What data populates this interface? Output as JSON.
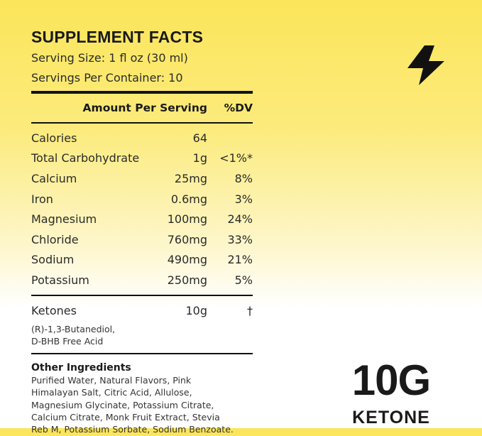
{
  "facts": {
    "title": "SUPPLEMENT FACTS",
    "serving_size": "Serving Size: 1 fl oz (30 ml)",
    "servings_per_container": "Servings Per Container: 10",
    "header_amount": "Amount Per Serving",
    "header_dv": "%DV",
    "rows": [
      {
        "name": "Calories",
        "amount": "64",
        "dv": ""
      },
      {
        "name": "Total Carbohydrate",
        "amount": "1g",
        "dv": "<1%*"
      },
      {
        "name": "Calcium",
        "amount": "25mg",
        "dv": "8%"
      },
      {
        "name": "Iron",
        "amount": "0.6mg",
        "dv": "3%"
      },
      {
        "name": "Magnesium",
        "amount": "100mg",
        "dv": "24%"
      },
      {
        "name": "Chloride",
        "amount": "760mg",
        "dv": "33%"
      },
      {
        "name": "Sodium",
        "amount": "490mg",
        "dv": "21%"
      },
      {
        "name": "Potassium",
        "amount": "250mg",
        "dv": "5%"
      }
    ],
    "ketones": {
      "name": "Ketones",
      "amount": "10g",
      "dv": "†"
    },
    "ketone_detail": [
      "(R)-1,3-Butanediol,",
      "D-BHB Free Acid"
    ],
    "other_title": "Other Ingredients",
    "other_lines": [
      "Purified Water, Natural Flavors, Pink",
      "Himalayan Salt, Citric Acid, Allulose,",
      "Magnesium Glycinate, Potassium Citrate,",
      "Calcium Citrate, Monk Fruit Extract, Stevia",
      "Reb M, Potassium Sorbate, Sodium Benzoate."
    ]
  },
  "badge": {
    "icon": "lightning-bolt-icon",
    "big_text": "10G",
    "small_text": "KETONE"
  },
  "colors": {
    "background_top": "#fbe55a",
    "background_bottom": "#ffffff",
    "ink": "#111111"
  }
}
